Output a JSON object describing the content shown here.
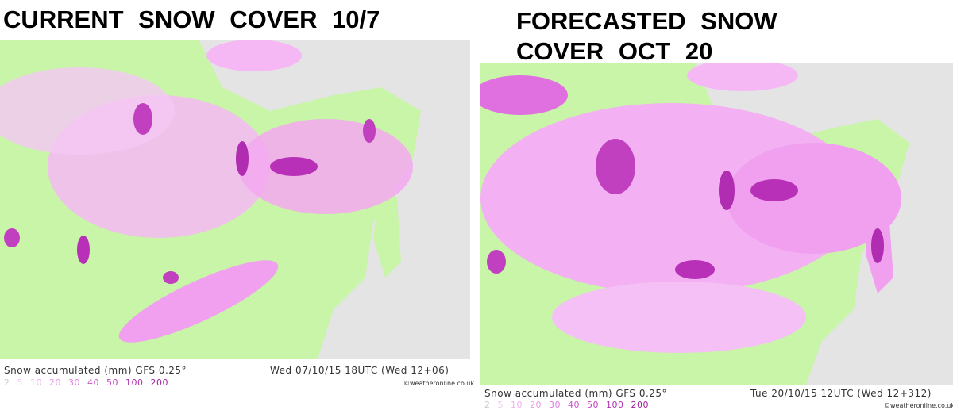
{
  "panels": [
    {
      "title": [
        "CURRENT SNOW COVER 10/7"
      ],
      "caption": "Snow accumulated (mm) GFS 0.25°",
      "time": "Wed 07/10/15 18UTC (Wed 12+06)",
      "legend": [
        2,
        5,
        10,
        20,
        30,
        40,
        50,
        100,
        200
      ],
      "credit": "©weatheronline.co.uk"
    },
    {
      "title": [
        "FORECASTED SNOW",
        "COVER OCT 20"
      ],
      "caption": "Snow accumulated (mm) GFS 0.25°",
      "time": "Tue 20/10/15 12UTC (Wed 12+312)",
      "legend": [
        2,
        5,
        10,
        20,
        30,
        40,
        50,
        100,
        200
      ],
      "credit": "©weatheronline.co.uk"
    }
  ]
}
